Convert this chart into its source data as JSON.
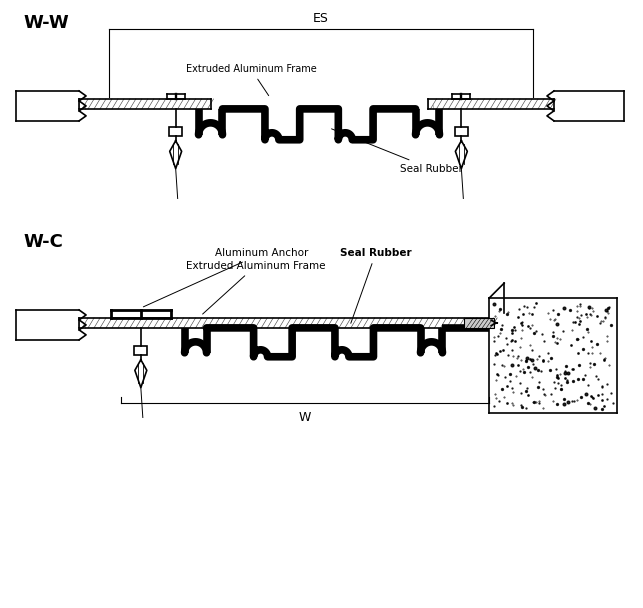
{
  "bg_color": "#ffffff",
  "line_color": "#000000",
  "lw_thin": 0.8,
  "lw_med": 1.2,
  "lw_thick": 2.0,
  "lw_rubber": 5.5,
  "ww_label": "W-W",
  "wc_label": "W-C",
  "es_label": "ES",
  "w_label": "W",
  "frame_label": "Extruded Aluminum Frame",
  "seal_label": "Seal Rubber",
  "anchor_label": "Aluminum Anchor",
  "frame_label_wc": "Extruded Aluminum Frame",
  "seal_label_wc": "Seal Rubber"
}
